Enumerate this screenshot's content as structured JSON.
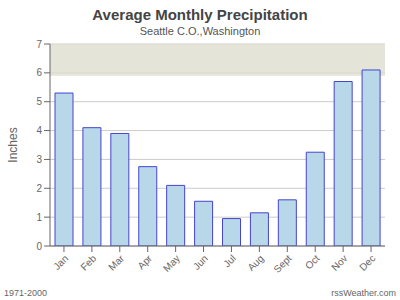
{
  "chart_data": {
    "type": "bar",
    "title": "Average Monthly Precipitation",
    "subtitle": "Seattle C.O.,Washington",
    "ylabel": "Inches",
    "categories": [
      "Jan",
      "Feb",
      "Mar",
      "Apr",
      "May",
      "Jun",
      "Jul",
      "Aug",
      "Sept",
      "Oct",
      "Nov",
      "Dec"
    ],
    "values": [
      5.3,
      4.1,
      3.9,
      2.75,
      2.1,
      1.55,
      0.95,
      1.15,
      1.6,
      3.25,
      5.7,
      6.1
    ],
    "color": "#b8d8ea",
    "ylim": [
      0.0,
      7.0
    ],
    "yticks": [
      0,
      1,
      2,
      3,
      4,
      5,
      6,
      7
    ],
    "grid": true,
    "band": [
      5.9,
      7.0
    ],
    "annotations": [
      "1971-2000",
      "rssWeather.com"
    ]
  }
}
